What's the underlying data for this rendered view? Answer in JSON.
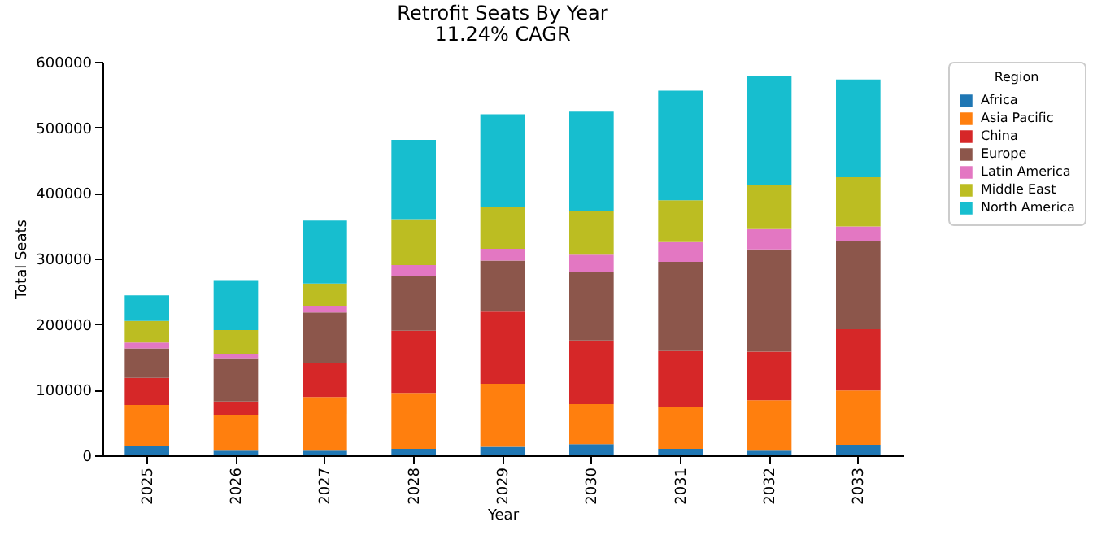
{
  "chart_data": {
    "type": "bar",
    "title": "Retrofit Seats By Year",
    "subtitle": "11.24% CAGR",
    "xlabel": "Year",
    "ylabel": "Total Seats",
    "legend_title": "Region",
    "stacked": true,
    "legend": "top right",
    "grid": false,
    "categories": [
      "2025",
      "2026",
      "2027",
      "2028",
      "2029",
      "2030",
      "2031",
      "2032",
      "2033"
    ],
    "ylim": [
      0,
      600000
    ],
    "yticks": [
      0,
      100000,
      200000,
      300000,
      400000,
      500000,
      600000
    ],
    "series": [
      {
        "name": "Africa",
        "color": "#1f77b4",
        "values": [
          14000,
          7000,
          7000,
          10000,
          13000,
          17000,
          10000,
          7000,
          16000
        ]
      },
      {
        "name": "Asia Pacific",
        "color": "#ff7f0e",
        "values": [
          63000,
          54000,
          82000,
          85000,
          96000,
          61000,
          64000,
          77000,
          83000
        ]
      },
      {
        "name": "China",
        "color": "#d62728",
        "values": [
          41000,
          21000,
          51000,
          95000,
          110000,
          97000,
          85000,
          74000,
          93000
        ]
      },
      {
        "name": "Europe",
        "color": "#8c564b",
        "values": [
          45000,
          66000,
          78000,
          83000,
          78000,
          104000,
          136000,
          156000,
          135000
        ]
      },
      {
        "name": "Latin America",
        "color": "#e377c2",
        "values": [
          9000,
          7000,
          10000,
          17000,
          18000,
          27000,
          30000,
          31000,
          22000
        ]
      },
      {
        "name": "Middle East",
        "color": "#bcbd22",
        "values": [
          33000,
          36000,
          34000,
          70000,
          64000,
          67000,
          64000,
          67000,
          75000
        ]
      },
      {
        "name": "North America",
        "color": "#17becf",
        "values": [
          39000,
          76000,
          96000,
          121000,
          141000,
          151000,
          167000,
          166000,
          149000
        ]
      }
    ]
  }
}
